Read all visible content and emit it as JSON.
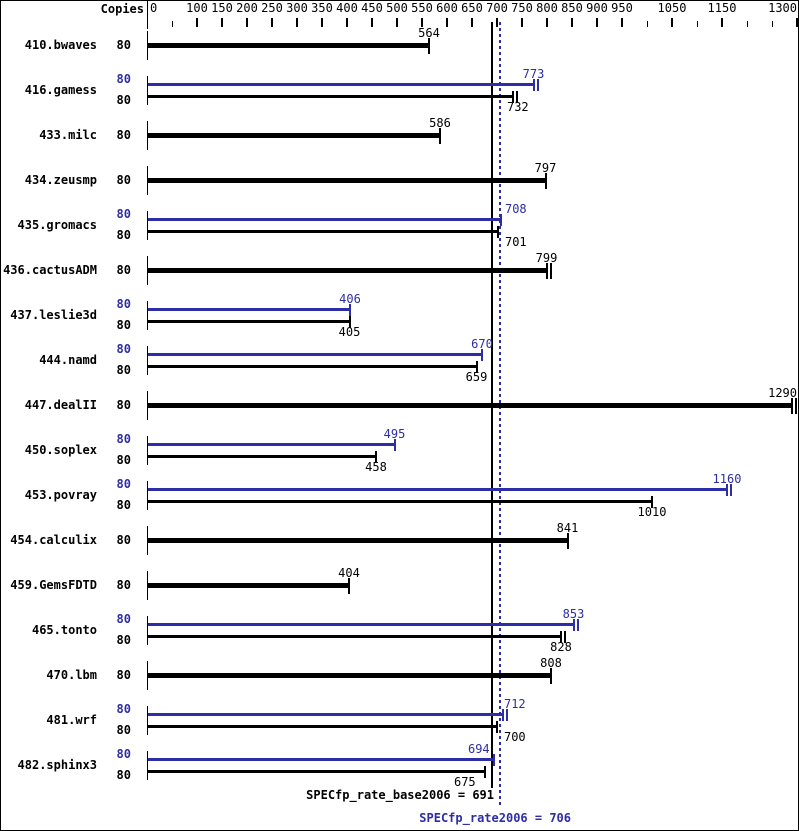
{
  "header": {
    "copies_label": "Copies"
  },
  "axis": {
    "zero_label": "0",
    "major_ticks": [
      100,
      150,
      200,
      250,
      300,
      350,
      400,
      450,
      500,
      550,
      600,
      650,
      700,
      750,
      800,
      850,
      900,
      950,
      1050,
      1150,
      1300
    ],
    "minor_ticks": [
      50,
      1000,
      1100,
      1200,
      1250
    ]
  },
  "reference_lines": {
    "base": {
      "value": 691,
      "color": "#000000",
      "style": "solid"
    },
    "peak": {
      "value": 706,
      "color": "#2d2da5",
      "style": "dotted"
    }
  },
  "footer": {
    "base_label": "SPECfp_rate_base2006 = 691",
    "peak_label": "SPECfp_rate2006 = 706"
  },
  "colors": {
    "peak_blue": "#2d2da5",
    "base_black": "#000000"
  },
  "chart_data": {
    "type": "bar",
    "orientation": "horizontal",
    "title": "SPECfp_rate2006 results",
    "xlabel": "",
    "ylabel": "Copies",
    "xlim": [
      0,
      1306
    ],
    "grid": false,
    "legend": "none",
    "series": [
      {
        "name": "peak",
        "color": "#2d2da5"
      },
      {
        "name": "base",
        "color": "#000000"
      }
    ],
    "summary": {
      "base": 691,
      "peak": 706
    },
    "benchmarks": [
      {
        "name": "410.bwaves",
        "copies": 80,
        "base": 564
      },
      {
        "name": "416.gamess",
        "copies": 80,
        "peak": 773,
        "base": 732
      },
      {
        "name": "433.milc",
        "copies": 80,
        "base": 586
      },
      {
        "name": "434.zeusmp",
        "copies": 80,
        "base": 797
      },
      {
        "name": "435.gromacs",
        "copies": 80,
        "peak": 708,
        "base": 701
      },
      {
        "name": "436.cactusADM",
        "copies": 80,
        "base": 799
      },
      {
        "name": "437.leslie3d",
        "copies": 80,
        "peak": 406,
        "base": 405
      },
      {
        "name": "444.namd",
        "copies": 80,
        "peak": 670,
        "base": 659
      },
      {
        "name": "447.dealII",
        "copies": 80,
        "base": 1290
      },
      {
        "name": "450.soplex",
        "copies": 80,
        "peak": 495,
        "base": 458
      },
      {
        "name": "453.povray",
        "copies": 80,
        "peak": 1160,
        "base": 1010
      },
      {
        "name": "454.calculix",
        "copies": 80,
        "base": 841
      },
      {
        "name": "459.GemsFDTD",
        "copies": 80,
        "base": 404
      },
      {
        "name": "465.tonto",
        "copies": 80,
        "peak": 853,
        "base": 828
      },
      {
        "name": "470.lbm",
        "copies": 80,
        "base": 808
      },
      {
        "name": "481.wrf",
        "copies": 80,
        "peak": 712,
        "base": 700
      },
      {
        "name": "482.sphinx3",
        "copies": 80,
        "peak": 694,
        "base": 675
      }
    ]
  }
}
